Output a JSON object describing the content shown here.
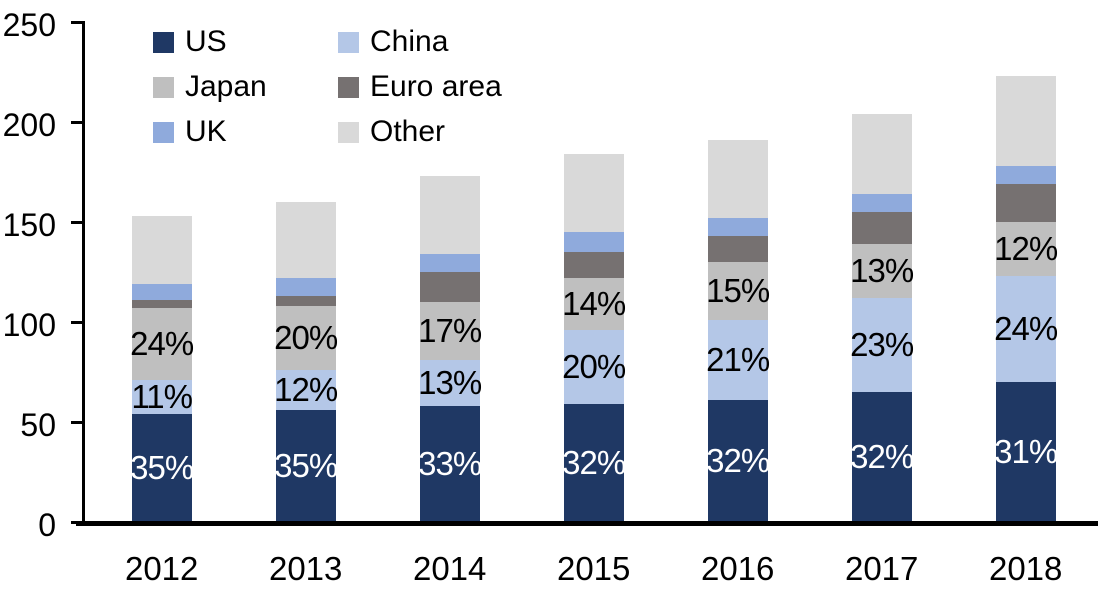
{
  "chart_data": {
    "type": "bar",
    "subtype": "stacked",
    "title": "",
    "x": [
      "2012",
      "2013",
      "2014",
      "2015",
      "2016",
      "2017",
      "2018"
    ],
    "ylim": [
      0,
      250
    ],
    "yticks": [
      "0",
      "50",
      "100",
      "150",
      "200",
      "250"
    ],
    "ytick_values": [
      0,
      50,
      100,
      150,
      200,
      250
    ],
    "grid": "off",
    "legend_position": "top-left",
    "series": [
      {
        "name": "US",
        "color": "#1F3864",
        "values": [
          54,
          56,
          58,
          59,
          61,
          65,
          70
        ],
        "labels": [
          "35%",
          "35%",
          "33%",
          "32%",
          "32%",
          "32%",
          "31%"
        ],
        "label_color": "#FFFFFF"
      },
      {
        "name": "China",
        "color": "#B4C7E7",
        "values": [
          17,
          20,
          23,
          37,
          40,
          47,
          53
        ],
        "labels": [
          "11%",
          "12%",
          "13%",
          "20%",
          "21%",
          "23%",
          "24%"
        ],
        "label_color": "#000000"
      },
      {
        "name": "Japan",
        "color": "#BFBFBF",
        "values": [
          36,
          32,
          29,
          26,
          29,
          27,
          27
        ],
        "labels": [
          "24%",
          "20%",
          "17%",
          "14%",
          "15%",
          "13%",
          "12%"
        ],
        "label_color": "#000000"
      },
      {
        "name": "Euro area",
        "color": "#767171",
        "values": [
          4,
          5,
          15,
          13,
          13,
          16,
          19
        ],
        "labels": null,
        "label_color": null
      },
      {
        "name": "UK",
        "color": "#8FAADC",
        "values": [
          8,
          9,
          9,
          10,
          9,
          9,
          9
        ],
        "labels": null,
        "label_color": null
      },
      {
        "name": "Other",
        "color": "#D9D9D9",
        "values": [
          34,
          38,
          39,
          39,
          39,
          40,
          45
        ],
        "labels": null,
        "label_color": null
      }
    ],
    "totals": [
      153,
      160,
      173,
      184,
      191,
      204,
      223
    ],
    "legend": {
      "items": [
        {
          "label": "US",
          "color": "#1F3864"
        },
        {
          "label": "China",
          "color": "#B4C7E7"
        },
        {
          "label": "Japan",
          "color": "#BFBFBF"
        },
        {
          "label": "Euro area",
          "color": "#767171"
        },
        {
          "label": "UK",
          "color": "#8FAADC"
        },
        {
          "label": "Other",
          "color": "#D9D9D9"
        }
      ]
    },
    "axis_color": "#000000",
    "background_color": "#FFFFFF"
  }
}
